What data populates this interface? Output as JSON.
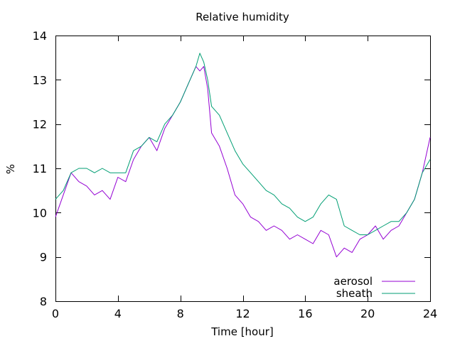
{
  "chart_data": {
    "type": "line",
    "title": "Relative humidity",
    "xlabel": "Time [hour]",
    "ylabel": "%",
    "xlim": [
      0,
      24
    ],
    "ylim": [
      8,
      14
    ],
    "xticks": [
      0,
      4,
      8,
      12,
      16,
      20,
      24
    ],
    "yticks": [
      8,
      9,
      10,
      11,
      12,
      13,
      14
    ],
    "grid": false,
    "legend_position": "bottom-right",
    "series": [
      {
        "name": "aerosol",
        "color": "#9400d3",
        "x": [
          0,
          0.5,
          1,
          1.5,
          2,
          2.5,
          3,
          3.5,
          4,
          4.5,
          5,
          5.5,
          6,
          6.5,
          7,
          7.5,
          8,
          8.5,
          9,
          9.25,
          9.5,
          9.75,
          10,
          10.5,
          11,
          11.5,
          12,
          12.5,
          13,
          13.5,
          14,
          14.5,
          15,
          15.5,
          16,
          16.5,
          17,
          17.5,
          18,
          18.5,
          19,
          19.5,
          20,
          20.5,
          21,
          21.5,
          22,
          22.5,
          23,
          23.5,
          24
        ],
        "y": [
          9.9,
          10.4,
          10.9,
          10.7,
          10.6,
          10.4,
          10.5,
          10.3,
          10.8,
          10.7,
          11.2,
          11.5,
          11.7,
          11.4,
          11.9,
          12.2,
          12.5,
          12.9,
          13.3,
          13.2,
          13.3,
          12.8,
          11.8,
          11.5,
          11.0,
          10.4,
          10.2,
          9.9,
          9.8,
          9.6,
          9.7,
          9.6,
          9.4,
          9.5,
          9.4,
          9.3,
          9.6,
          9.5,
          9.0,
          9.2,
          9.1,
          9.4,
          9.5,
          9.7,
          9.4,
          9.6,
          9.7,
          10.0,
          10.3,
          10.9,
          11.7
        ]
      },
      {
        "name": "sheath",
        "color": "#009e73",
        "x": [
          0,
          0.5,
          1,
          1.5,
          2,
          2.5,
          3,
          3.5,
          4,
          4.5,
          5,
          5.5,
          6,
          6.5,
          7,
          7.5,
          8,
          8.5,
          9,
          9.25,
          9.5,
          9.75,
          10,
          10.5,
          11,
          11.5,
          12,
          12.5,
          13,
          13.5,
          14,
          14.5,
          15,
          15.5,
          16,
          16.5,
          17,
          17.5,
          18,
          18.5,
          19,
          19.5,
          20,
          20.5,
          21,
          21.5,
          22,
          22.5,
          23,
          23.5,
          24
        ],
        "y": [
          10.3,
          10.5,
          10.9,
          11.0,
          11.0,
          10.9,
          11.0,
          10.9,
          10.9,
          10.9,
          11.4,
          11.5,
          11.7,
          11.6,
          12.0,
          12.2,
          12.5,
          12.9,
          13.3,
          13.6,
          13.4,
          13.0,
          12.4,
          12.2,
          11.8,
          11.4,
          11.1,
          10.9,
          10.7,
          10.5,
          10.4,
          10.2,
          10.1,
          9.9,
          9.8,
          9.9,
          10.2,
          10.4,
          10.3,
          9.7,
          9.6,
          9.5,
          9.5,
          9.6,
          9.7,
          9.8,
          9.8,
          10.0,
          10.3,
          10.9,
          11.2
        ]
      }
    ]
  }
}
